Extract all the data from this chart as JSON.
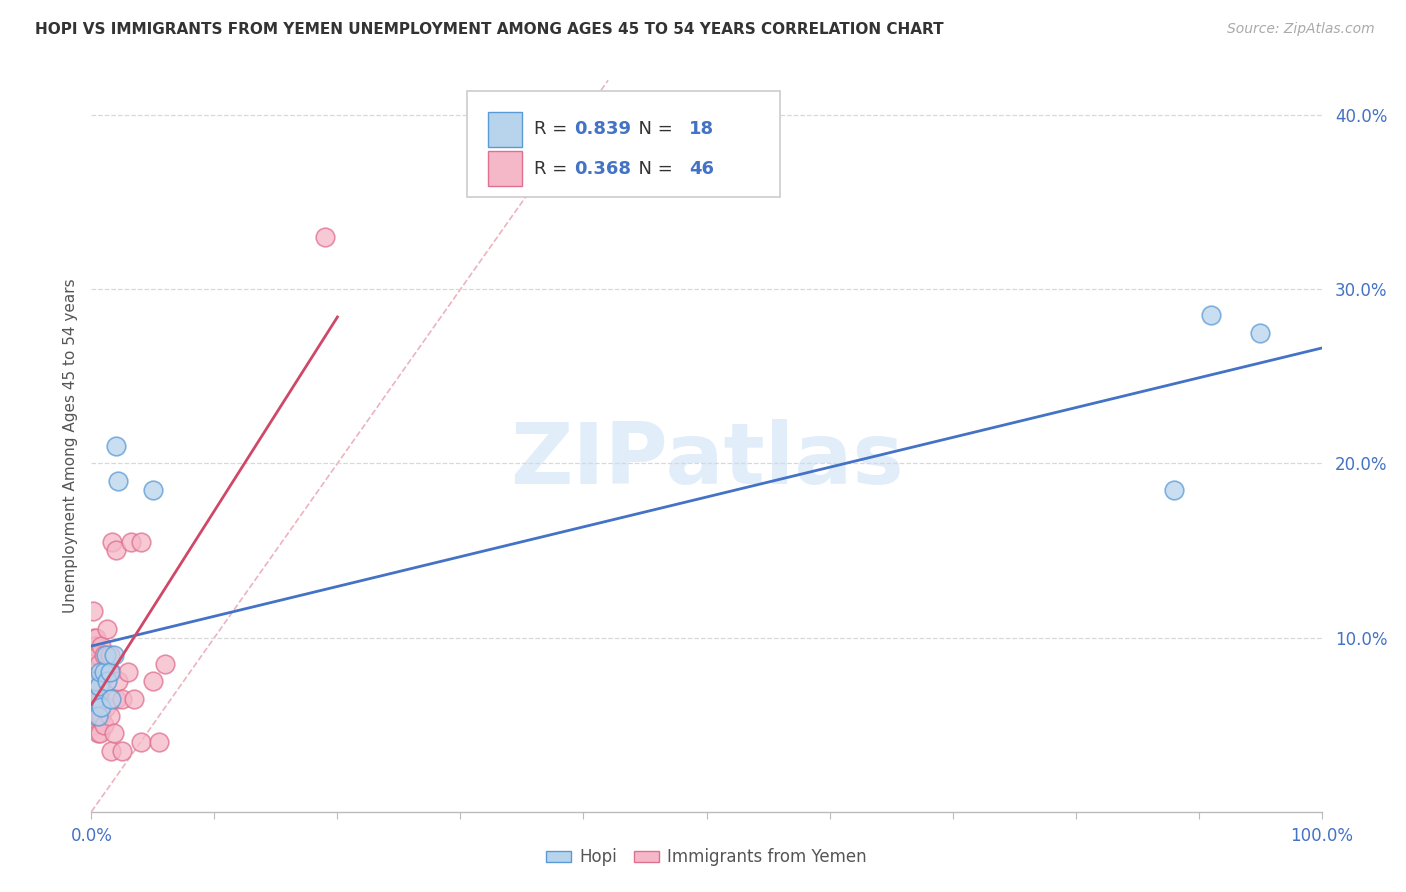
{
  "title": "HOPI VS IMMIGRANTS FROM YEMEN UNEMPLOYMENT AMONG AGES 45 TO 54 YEARS CORRELATION CHART",
  "source": "Source: ZipAtlas.com",
  "ylabel": "Unemployment Among Ages 45 to 54 years",
  "xlim": [
    0,
    1.0
  ],
  "ylim": [
    0,
    0.42
  ],
  "xticks": [
    0.0,
    0.1,
    0.2,
    0.3,
    0.4,
    0.5,
    0.6,
    0.7,
    0.8,
    0.9,
    1.0
  ],
  "yticks": [
    0.1,
    0.2,
    0.3,
    0.4
  ],
  "hopi_R": 0.839,
  "hopi_N": 18,
  "yemen_R": 0.368,
  "yemen_N": 46,
  "hopi_color": "#b8d4ec",
  "hopi_edge_color": "#5b9bd5",
  "hopi_line_color": "#4472c4",
  "yemen_color": "#f5b8c8",
  "yemen_edge_color": "#e07090",
  "yemen_line_color": "#d04868",
  "diag_color": "#e8a0b0",
  "hopi_x": [
    0.003,
    0.004,
    0.005,
    0.006,
    0.007,
    0.008,
    0.01,
    0.012,
    0.013,
    0.015,
    0.016,
    0.018,
    0.02,
    0.022,
    0.05,
    0.88,
    0.91,
    0.95
  ],
  "hopi_y": [
    0.065,
    0.075,
    0.055,
    0.072,
    0.08,
    0.06,
    0.08,
    0.09,
    0.075,
    0.08,
    0.065,
    0.09,
    0.21,
    0.19,
    0.185,
    0.185,
    0.285,
    0.275
  ],
  "yemen_x": [
    0.001,
    0.001,
    0.001,
    0.002,
    0.002,
    0.002,
    0.003,
    0.003,
    0.004,
    0.004,
    0.004,
    0.005,
    0.005,
    0.005,
    0.006,
    0.006,
    0.007,
    0.007,
    0.008,
    0.008,
    0.009,
    0.01,
    0.01,
    0.012,
    0.013,
    0.013,
    0.015,
    0.015,
    0.016,
    0.016,
    0.017,
    0.018,
    0.02,
    0.02,
    0.022,
    0.025,
    0.025,
    0.03,
    0.032,
    0.035,
    0.04,
    0.04,
    0.05,
    0.055,
    0.06,
    0.19
  ],
  "yemen_y": [
    0.07,
    0.09,
    0.115,
    0.05,
    0.075,
    0.1,
    0.065,
    0.095,
    0.055,
    0.075,
    0.1,
    0.045,
    0.065,
    0.09,
    0.055,
    0.085,
    0.045,
    0.065,
    0.055,
    0.095,
    0.075,
    0.05,
    0.09,
    0.06,
    0.08,
    0.105,
    0.055,
    0.09,
    0.035,
    0.08,
    0.155,
    0.045,
    0.065,
    0.15,
    0.075,
    0.035,
    0.065,
    0.08,
    0.155,
    0.065,
    0.04,
    0.155,
    0.075,
    0.04,
    0.085,
    0.33
  ],
  "watermark_text": "ZIPatlas",
  "background_color": "#ffffff",
  "grid_color": "#d8d8d8"
}
